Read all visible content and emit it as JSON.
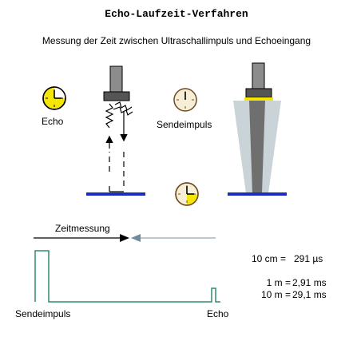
{
  "title": "Echo-Laufzeit-Verfahren",
  "subtitle": "Messung der Zeit zwischen Ultraschallimpuls und Echoeingang",
  "labels": {
    "echo": "Echo",
    "sendeimpuls": "Sendeimpuls",
    "zeitmessung": "Zeitmessung",
    "sendeimpuls_bottom": "Sendeimpuls",
    "echo_bottom": "Echo"
  },
  "conversions": [
    {
      "left": "10 cm =",
      "right": "291 µs"
    },
    {
      "left": "1 m =",
      "right": "2,91 ms"
    },
    {
      "left": "10 m =",
      "right": "29,1 ms"
    }
  ],
  "colors": {
    "transducer_gray": "#8c8c8c",
    "surface_blue": "#1a2dbf",
    "signal_green": "#2e8b6e",
    "beam_light": "#c9d3d8",
    "beam_dark": "#6f6f6f",
    "clock_yellow": "#f5e60a",
    "clock_beige": "#f7eed8",
    "clock_brown": "#6b4a1e",
    "arrow_gray_blue": "#8fa8b8"
  }
}
